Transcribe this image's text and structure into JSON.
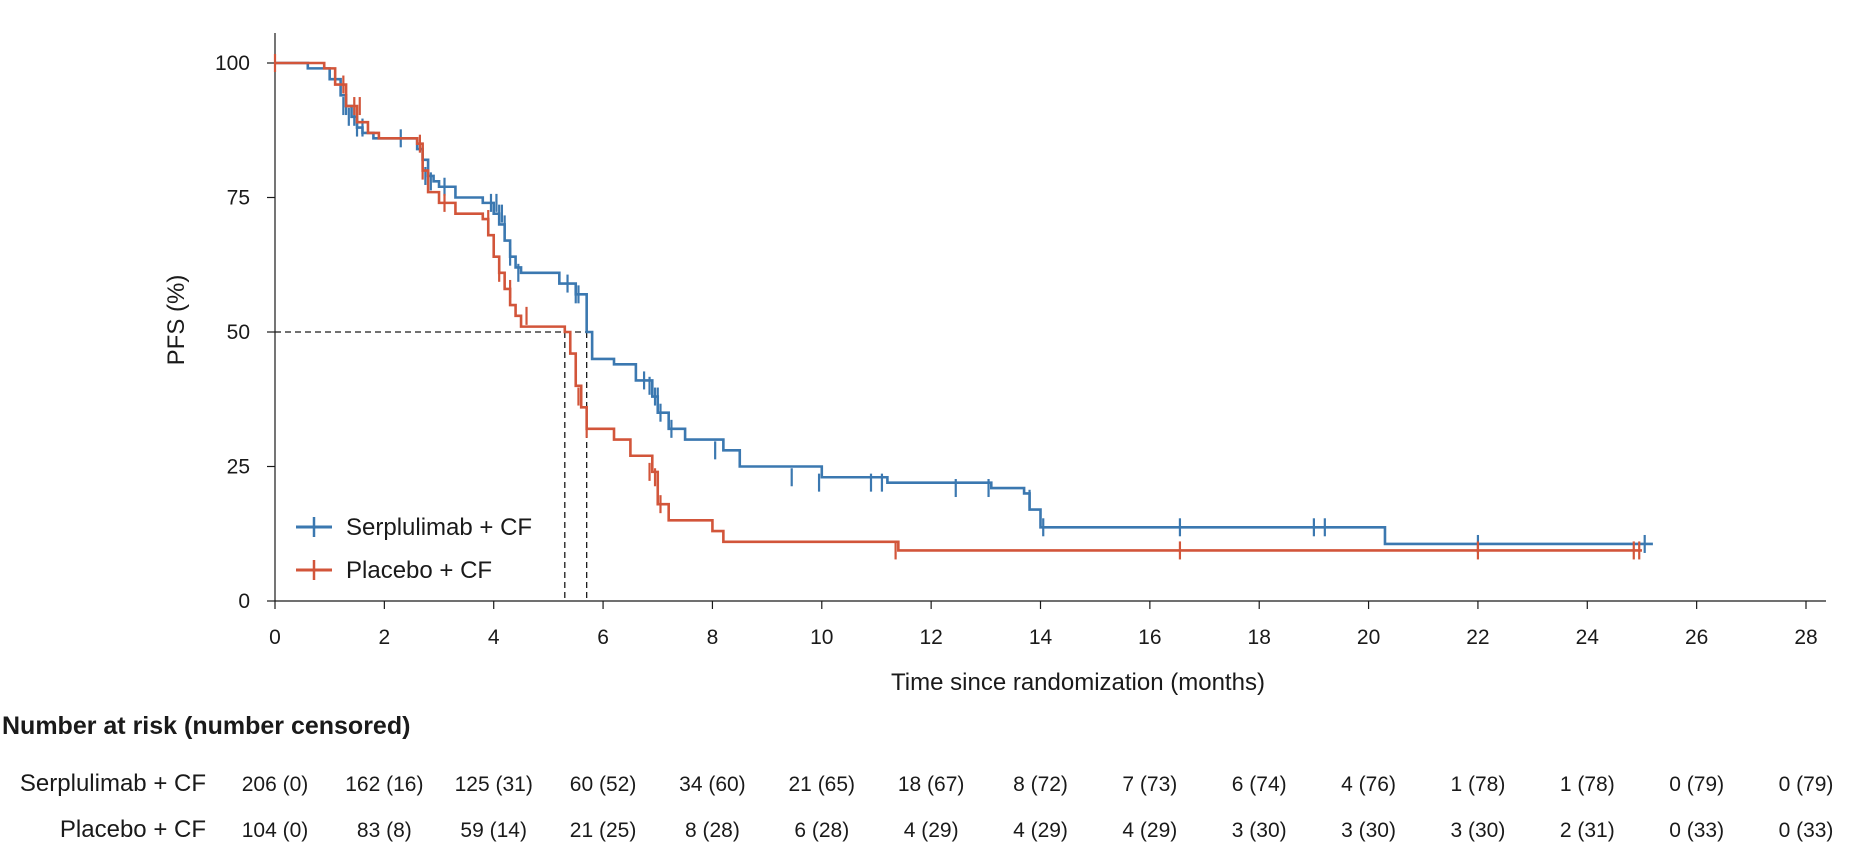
{
  "chart_data": {
    "type": "line",
    "subtype": "kaplan-meier",
    "title": "",
    "xlabel": "Time since randomization (months)",
    "ylabel": "PFS (%)",
    "xlim": [
      0,
      28
    ],
    "ylim": [
      0,
      100
    ],
    "xticks": [
      0,
      2,
      4,
      6,
      8,
      10,
      12,
      14,
      16,
      18,
      20,
      22,
      24,
      26,
      28
    ],
    "yticks": [
      0,
      25,
      50,
      75,
      100
    ],
    "legend_position": "bottom-left",
    "medians": [
      {
        "series": "Serplulimab + CF",
        "x": 5.7,
        "y": 50
      },
      {
        "series": "Placebo + CF",
        "x": 5.3,
        "y": 50
      }
    ],
    "series": [
      {
        "name": "Serplulimab + CF",
        "color": "#3b78b0",
        "x": [
          0,
          0.6,
          1.0,
          1.2,
          1.3,
          1.4,
          1.5,
          1.6,
          1.8,
          2.0,
          2.6,
          2.7,
          2.8,
          2.9,
          3.0,
          3.3,
          3.8,
          4.0,
          4.1,
          4.2,
          4.3,
          4.4,
          4.5,
          5.2,
          5.5,
          5.7,
          5.8,
          6.2,
          6.6,
          6.9,
          7.0,
          7.2,
          7.5,
          8.2,
          8.5,
          10.0,
          11.2,
          13.1,
          13.7,
          13.8,
          14.0,
          20.3,
          25.2
        ],
        "y": [
          100,
          99,
          97,
          94,
          92,
          90,
          88,
          87,
          86,
          86,
          84,
          82,
          79,
          78,
          77,
          75,
          74,
          72,
          70,
          67,
          64,
          62,
          61,
          59,
          57,
          50,
          45,
          44,
          41,
          38,
          35,
          32,
          30,
          28,
          25,
          23,
          22,
          21,
          20,
          17,
          13.7,
          10.6,
          10.6
        ],
        "censor_x": [
          1.25,
          1.3,
          1.35,
          1.45,
          1.5,
          1.6,
          2.3,
          2.75,
          2.85,
          3.1,
          3.95,
          4.05,
          4.1,
          4.15,
          4.2,
          4.3,
          4.45,
          5.35,
          5.5,
          5.55,
          6.75,
          6.85,
          6.95,
          7.0,
          7.05,
          7.25,
          8.05,
          9.45,
          9.95,
          10.9,
          11.1,
          12.45,
          13.05,
          13.8,
          14.05,
          16.55,
          19.0,
          19.2,
          22.0,
          25.05
        ],
        "censor_y": [
          92,
          92,
          90,
          90,
          88,
          88,
          86,
          79,
          78,
          77,
          74,
          74,
          72,
          72,
          70,
          64,
          61,
          59,
          57,
          57,
          41,
          40,
          38,
          38,
          35,
          32,
          28,
          23,
          22,
          22,
          22,
          21,
          21,
          19,
          13.7,
          13.7,
          13.7,
          13.7,
          10.6,
          10.6
        ]
      },
      {
        "name": "Placebo + CF",
        "color": "#d2553a",
        "x": [
          0,
          0.9,
          1.1,
          1.3,
          1.5,
          1.7,
          1.9,
          2.6,
          2.7,
          2.8,
          3.0,
          3.3,
          3.8,
          3.9,
          4.0,
          4.1,
          4.2,
          4.3,
          4.4,
          4.5,
          5.3,
          5.4,
          5.5,
          5.6,
          5.7,
          6.2,
          6.5,
          6.9,
          7.0,
          7.2,
          8.0,
          8.2,
          11.4,
          25.0
        ],
        "y": [
          100,
          99,
          96,
          92,
          89,
          87,
          86,
          85,
          80,
          76,
          74,
          72,
          71,
          68,
          64,
          61,
          58,
          55,
          53,
          51,
          50,
          46,
          40,
          36,
          32,
          30,
          27,
          24,
          18,
          15,
          13,
          11,
          9.4,
          9.4
        ],
        "censor_x": [
          0,
          1.25,
          1.45,
          1.55,
          2.65,
          2.7,
          3.1,
          3.9,
          4.1,
          4.3,
          4.6,
          5.55,
          5.7,
          6.85,
          6.95,
          7.05,
          11.35,
          16.55,
          22.0,
          24.85,
          24.95
        ],
        "censor_y": [
          100,
          96,
          92,
          92,
          85,
          80,
          74,
          71,
          61,
          58,
          53,
          38,
          32,
          24,
          23,
          18,
          9.4,
          9.4,
          9.4,
          9.4,
          9.4
        ]
      }
    ]
  },
  "risk_table": {
    "title": "Number at risk (number censored)",
    "timepoints": [
      0,
      2,
      4,
      6,
      8,
      10,
      12,
      14,
      16,
      18,
      20,
      22,
      24,
      26,
      28
    ],
    "rows": [
      {
        "label": "Serplulimab + CF",
        "values": [
          "206 (0)",
          "162 (16)",
          "125 (31)",
          "60 (52)",
          "34 (60)",
          "21 (65)",
          "18 (67)",
          "8 (72)",
          "7 (73)",
          "6 (74)",
          "4 (76)",
          "1 (78)",
          "1 (78)",
          "0 (79)",
          "0 (79)"
        ]
      },
      {
        "label": "Placebo + CF",
        "values": [
          "104 (0)",
          "83 (8)",
          "59 (14)",
          "21 (25)",
          "8 (28)",
          "6 (28)",
          "4 (29)",
          "4 (29)",
          "4 (29)",
          "3 (30)",
          "3 (30)",
          "3 (30)",
          "2 (31)",
          "0 (33)",
          "0 (33)"
        ]
      }
    ]
  }
}
